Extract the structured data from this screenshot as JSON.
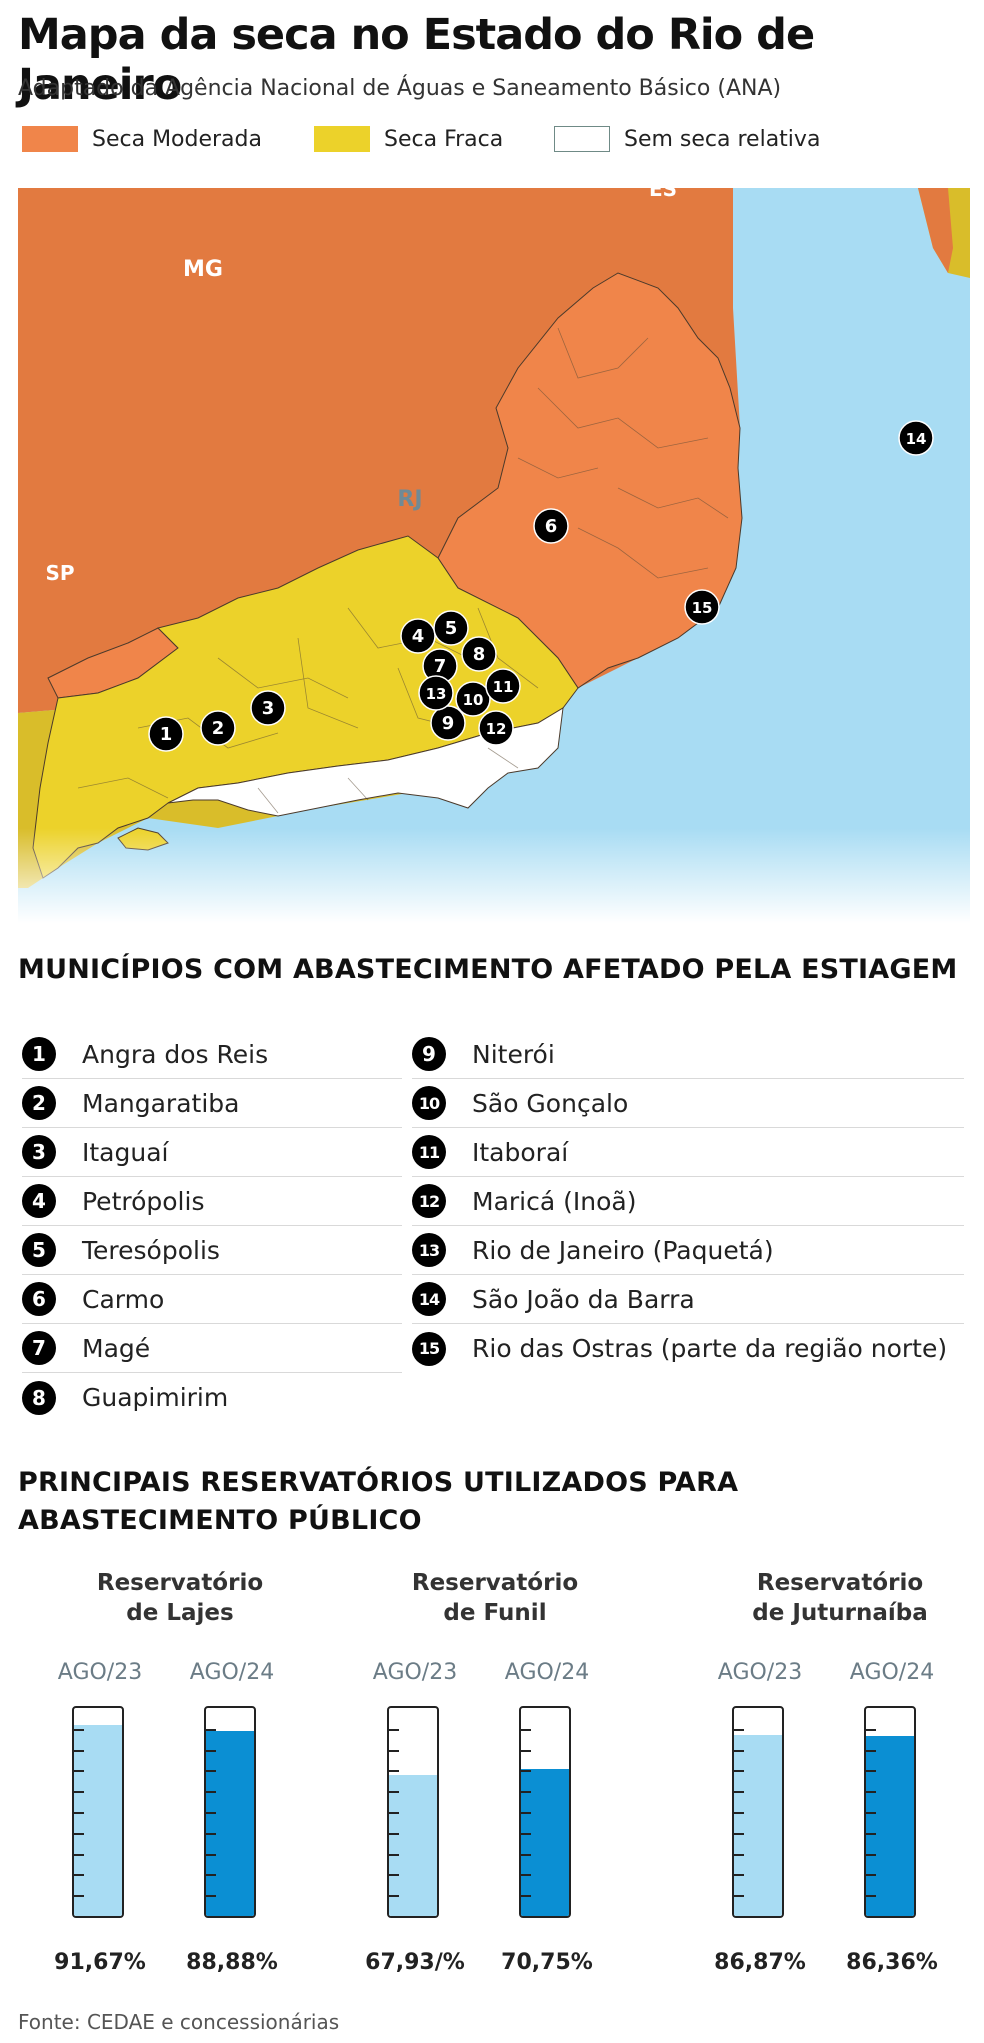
{
  "title": "Mapa da seca no Estado do Rio de Janeiro",
  "subtitle": "Adaptado da Agência Nacional de Águas e Saneamento Básico (ANA)",
  "legend": [
    {
      "label": "Seca Moderada",
      "color": "#f0854a"
    },
    {
      "label": "Seca Fraca",
      "color": "#ecd22a"
    },
    {
      "label": "Sem seca relativa",
      "color": "#ffffff"
    }
  ],
  "map": {
    "labels": {
      "mg": "MG",
      "es": "ES",
      "sp": "SP",
      "rj": "RJ"
    },
    "colors": {
      "moderada": "#f0854a",
      "fraca": "#ecd22a",
      "sem_seca": "#ffffff",
      "outside_moderada": "#e27a40",
      "outside_fraca": "#d9bd2a",
      "ocean": "#a8dcf3"
    },
    "markers": [
      "1",
      "2",
      "3",
      "4",
      "5",
      "6",
      "7",
      "8",
      "9",
      "10",
      "11",
      "12",
      "13",
      "14",
      "15"
    ]
  },
  "municipios": {
    "title": "MUNICÍPIOS COM ABASTECIMENTO AFETADO PELA ESTIAGEM",
    "items": [
      {
        "num": "1",
        "name": "Angra dos Reis"
      },
      {
        "num": "2",
        "name": "Mangaratiba"
      },
      {
        "num": "3",
        "name": "Itaguaí"
      },
      {
        "num": "4",
        "name": "Petrópolis"
      },
      {
        "num": "5",
        "name": "Teresópolis"
      },
      {
        "num": "6",
        "name": "Carmo"
      },
      {
        "num": "7",
        "name": "Magé"
      },
      {
        "num": "8",
        "name": "Guapimirim"
      },
      {
        "num": "9",
        "name": "Niterói"
      },
      {
        "num": "10",
        "name": "São Gonçalo"
      },
      {
        "num": "11",
        "name": "Itaboraí"
      },
      {
        "num": "12",
        "name": "Maricá (Inoã)"
      },
      {
        "num": "13",
        "name": "Rio de Janeiro (Paquetá)"
      },
      {
        "num": "14",
        "name": "São João da Barra"
      },
      {
        "num": "15",
        "name": "Rio das Ostras (parte da região norte)"
      }
    ]
  },
  "reservatorios": {
    "title_line1": "PRINCIPAIS RESERVATÓRIOS UTILIZADOS PARA",
    "title_line2": "ABASTECIMENTO PÚBLICO",
    "items": [
      {
        "name_line1": "Reservatório",
        "name_line2": "de Lajes",
        "before": {
          "label": "AGO/23",
          "value_text": "91,67%",
          "value": 91.67
        },
        "after": {
          "label": "AGO/24",
          "value_text": "88,88%",
          "value": 88.88
        }
      },
      {
        "name_line1": "Reservatório",
        "name_line2": "de Funil",
        "before": {
          "label": "AGO/23",
          "value_text": "67,93/%",
          "value": 67.93
        },
        "after": {
          "label": "AGO/24",
          "value_text": "70,75%",
          "value": 70.75
        }
      },
      {
        "name_line1": "Reservatório",
        "name_line2": "de Juturnaíba",
        "before": {
          "label": "AGO/23",
          "value_text": "86,87%",
          "value": 86.87
        },
        "after": {
          "label": "AGO/24",
          "value_text": "86,36%",
          "value": 86.36
        }
      }
    ]
  },
  "source": "Fonte: CEDAE e concessionárias"
}
